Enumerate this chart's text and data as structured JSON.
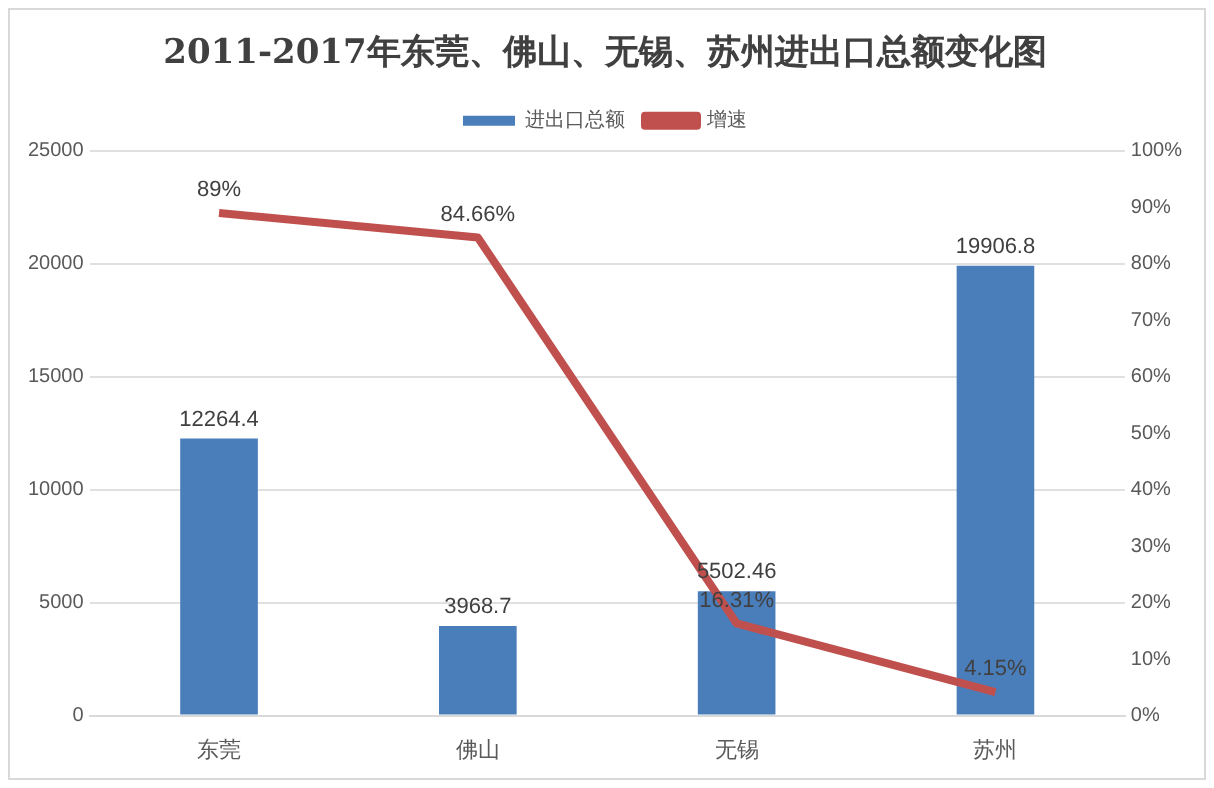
{
  "chart_data": {
    "type": "bar",
    "title": "2011-2017年东莞、佛山、无锡、苏州进出口总额变化图",
    "categories": [
      "东莞",
      "佛山",
      "无锡",
      "苏州"
    ],
    "series": [
      {
        "name": "进出口总额",
        "color": "#4a7ebb",
        "values": [
          12264.4,
          3968.7,
          5502.46,
          19906.8
        ],
        "value_labels": [
          "12264.4",
          "3968.7",
          "5502.46",
          "19906.8"
        ]
      },
      {
        "name": "增速",
        "type": "line",
        "axis": "y2",
        "color": "#c0504d",
        "values": [
          89,
          84.66,
          16.31,
          4.15
        ],
        "value_labels": [
          "89%",
          "84.66%",
          "16.31%",
          "4.15%"
        ]
      }
    ],
    "ylim": [
      0,
      25000
    ],
    "yticks": [
      0,
      5000,
      10000,
      15000,
      20000,
      25000
    ],
    "y2lim": [
      0,
      100
    ],
    "y2ticks": [
      {
        "value": 0,
        "label": "0%"
      },
      {
        "value": 10,
        "label": "10%"
      },
      {
        "value": 20,
        "label": "20%"
      },
      {
        "value": 30,
        "label": "30%"
      },
      {
        "value": 40,
        "label": "40%"
      },
      {
        "value": 50,
        "label": "50%"
      },
      {
        "value": 60,
        "label": "60%"
      },
      {
        "value": 70,
        "label": "70%"
      },
      {
        "value": 80,
        "label": "80%"
      },
      {
        "value": 90,
        "label": "90%"
      },
      {
        "value": 100,
        "label": "100%"
      }
    ],
    "grid": "y",
    "legend": "top",
    "marker": "none"
  }
}
